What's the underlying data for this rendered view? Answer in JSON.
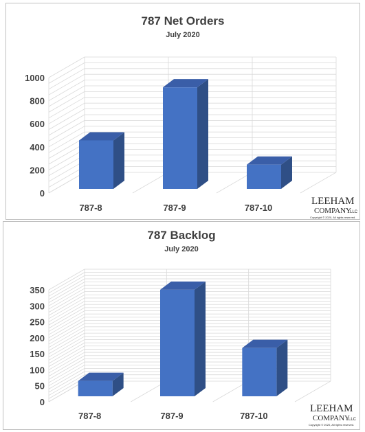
{
  "chart_data": [
    {
      "type": "bar",
      "title": "787 Net Orders",
      "subtitle": "July 2020",
      "categories": [
        "787-8",
        "787-9",
        "787-10"
      ],
      "values": [
        420,
        880,
        210
      ],
      "ylim": [
        0,
        1000
      ],
      "yticks": [
        0,
        200,
        400,
        600,
        800,
        1000
      ],
      "grid": true,
      "style": "3d-column",
      "bar_color": "#4472c4",
      "logo": {
        "line1": "LEEHAM",
        "line2": "COMPANY",
        "suffix": "LLC",
        "copyright": "Copyright © 2020, All rights reserved."
      }
    },
    {
      "type": "bar",
      "title": "787 Backlog",
      "subtitle": "July 2020",
      "categories": [
        "787-8",
        "787-9",
        "787-10"
      ],
      "values": [
        48,
        333,
        151
      ],
      "ylim": [
        0,
        350
      ],
      "yticks": [
        0,
        50,
        100,
        150,
        200,
        250,
        300,
        350
      ],
      "grid": true,
      "style": "3d-column",
      "bar_color": "#4472c4",
      "logo": {
        "line1": "LEEHAM",
        "line2": "COMPANY",
        "suffix": "LLC",
        "copyright": "Copyright © 2020, All rights reserved."
      }
    }
  ]
}
